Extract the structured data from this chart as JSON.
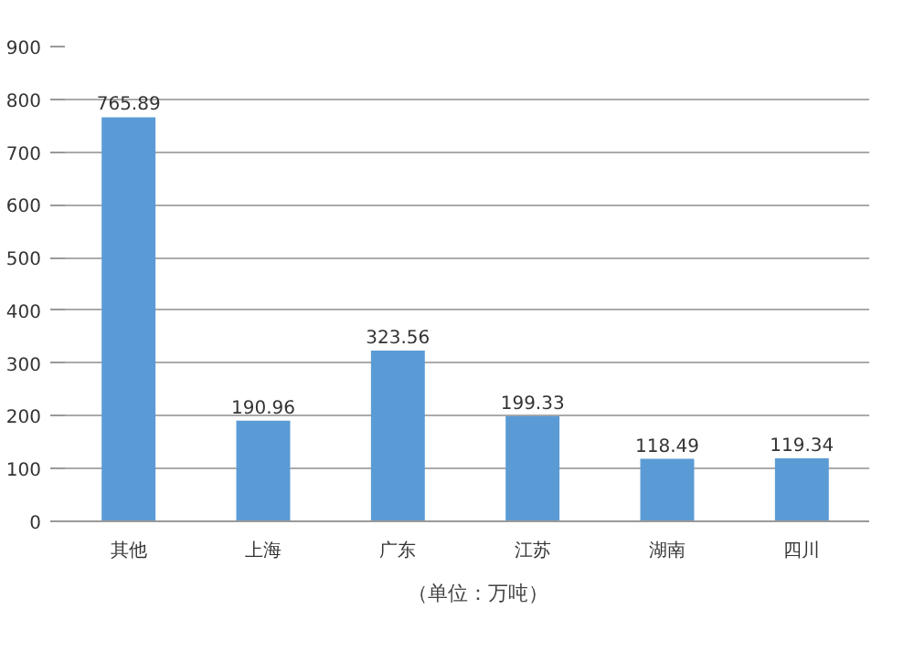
{
  "chart_data": {
    "type": "bar",
    "categories": [
      "其他",
      "上海",
      "广东",
      "江苏",
      "湖南",
      "四川"
    ],
    "series": [
      {
        "name": "（单位：万吨）",
        "color": "#5b9bd5",
        "values": [
          765.89,
          190.96,
          323.56,
          199.33,
          118.49,
          119.34
        ]
      }
    ],
    "ylim": [
      0,
      900
    ],
    "yticks": [
      0,
      100,
      200,
      300,
      400,
      500,
      600,
      700,
      800,
      900
    ],
    "grid": "y",
    "legend": "bottom",
    "data_labels": true
  }
}
